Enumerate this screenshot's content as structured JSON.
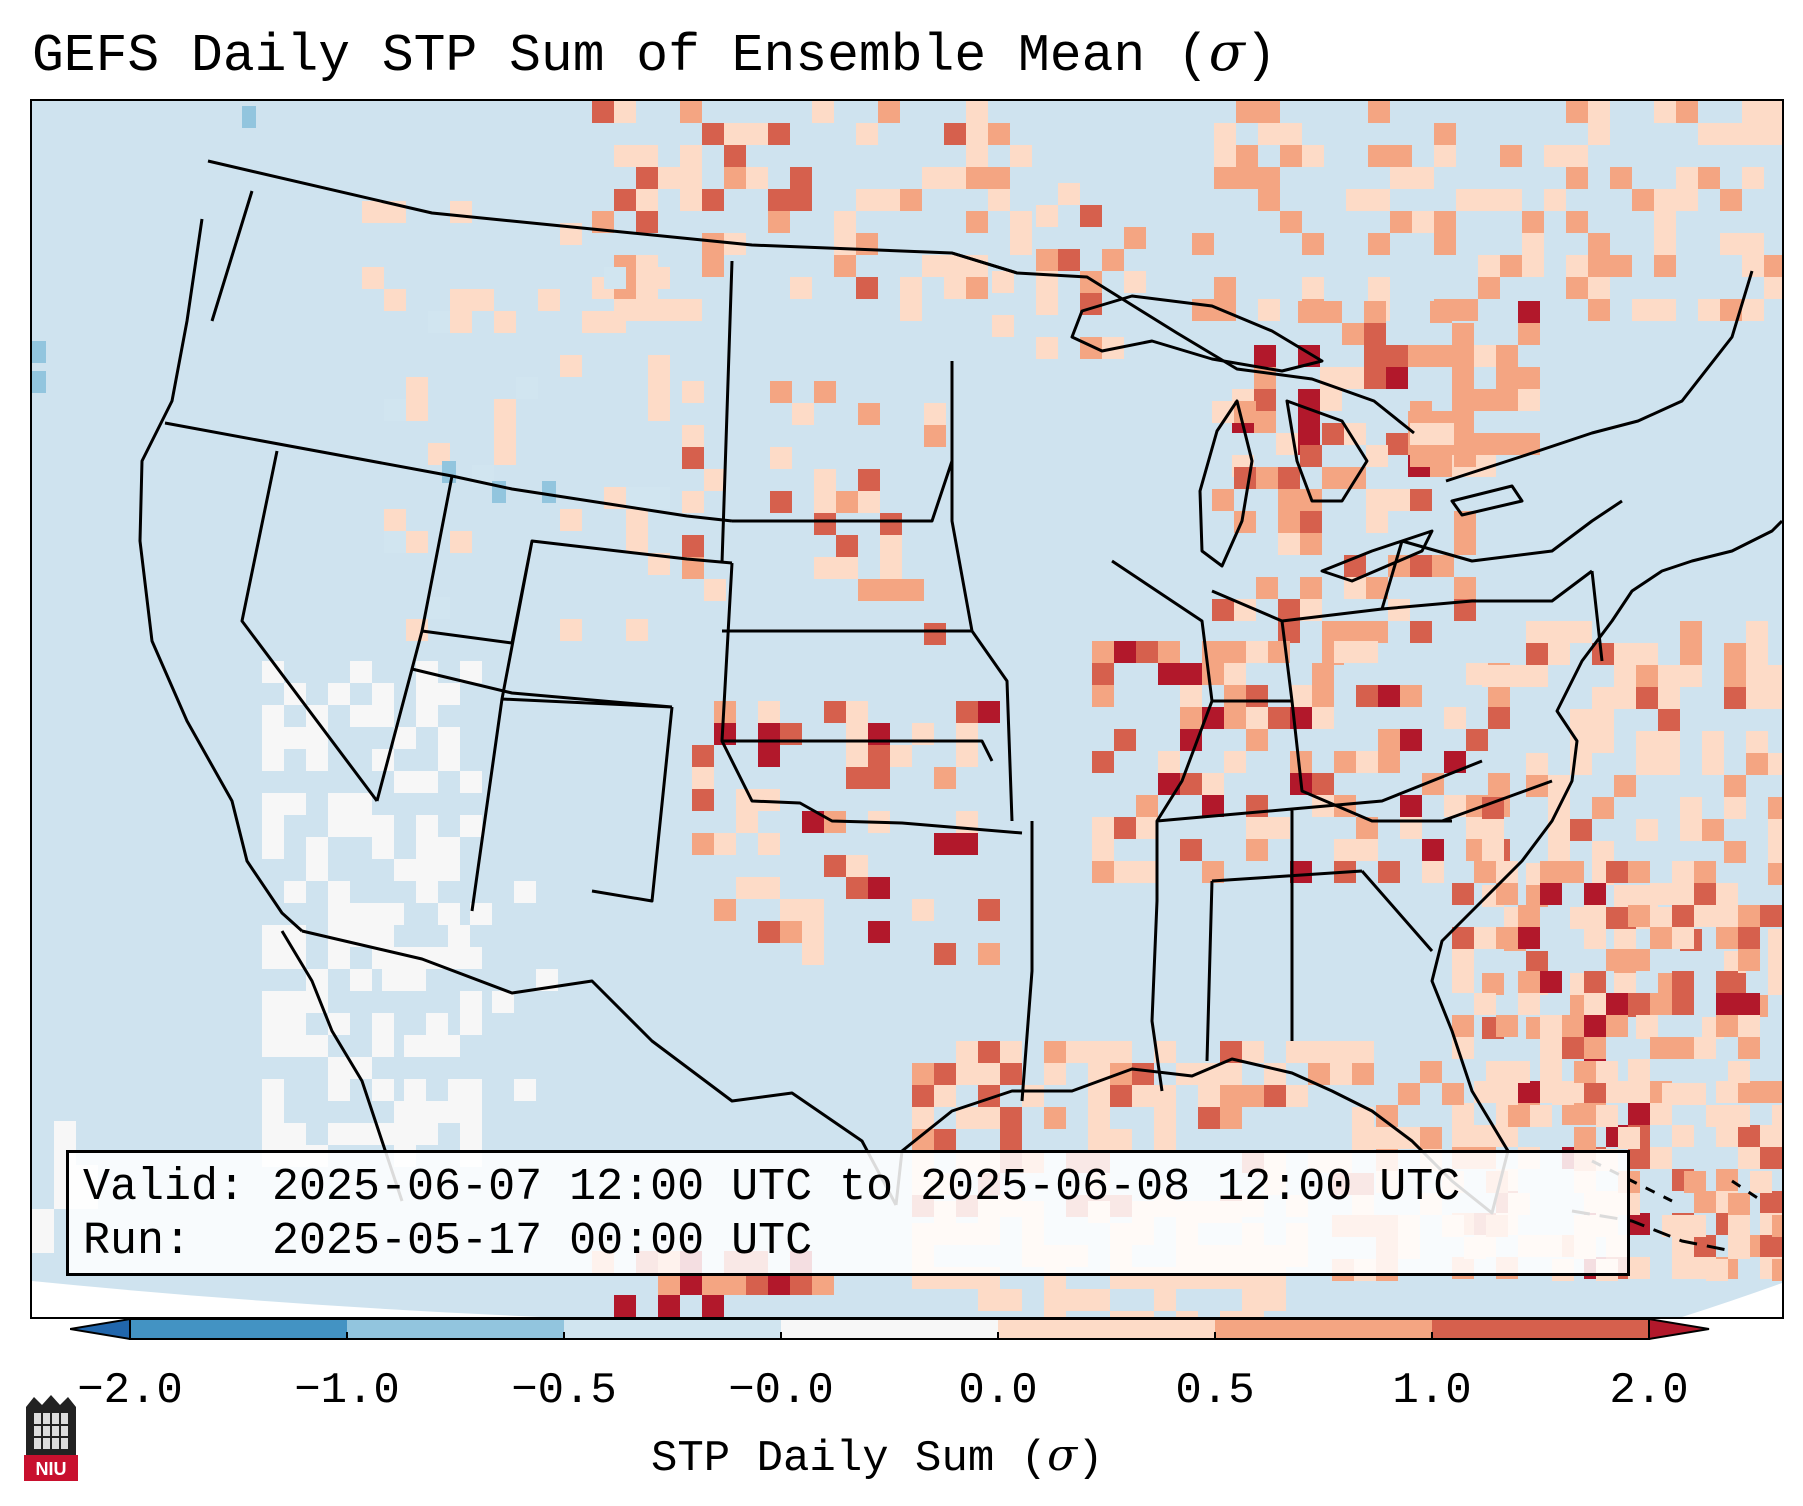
{
  "title": {
    "prefix": "GEFS Daily STP Sum of Ensemble Mean (",
    "sigma": "σ",
    "suffix": ")"
  },
  "info": {
    "valid_line": "Valid: 2025-06-07 12:00 UTC to 2025-06-08 12:00 UTC",
    "run_line": "Run:   2025-05-17 00:00 UTC"
  },
  "colorbar": {
    "label_prefix": "STP Daily Sum (",
    "label_sigma": "σ",
    "label_suffix": ")",
    "ticks": [
      "−2.0",
      "−1.0",
      "−0.5",
      "−0.0",
      "0.0",
      "0.5",
      "1.0",
      "2.0"
    ],
    "bins": [
      {
        "range": "< -2.0",
        "color": "#2166ac"
      },
      {
        "range": "-2.0 to -1.0",
        "color": "#4393c3"
      },
      {
        "range": "-1.0 to -0.5",
        "color": "#92c5de"
      },
      {
        "range": "-0.5 to -0.0",
        "color": "#d1e5f0"
      },
      {
        "range": "-0.0 to 0.0",
        "color": "#f7f7f7"
      },
      {
        "range": "0.0 to 0.5",
        "color": "#fddbc7"
      },
      {
        "range": "0.5 to 1.0",
        "color": "#f4a582"
      },
      {
        "range": "1.0 to 2.0",
        "color": "#d6604d"
      },
      {
        "range": "> 2.0",
        "color": "#b2182b"
      }
    ]
  },
  "map": {
    "background_color": "#d1e5f0",
    "boundary_color": "#000000"
  },
  "logo": {
    "text": "NIU",
    "color": "#c8102e"
  }
}
